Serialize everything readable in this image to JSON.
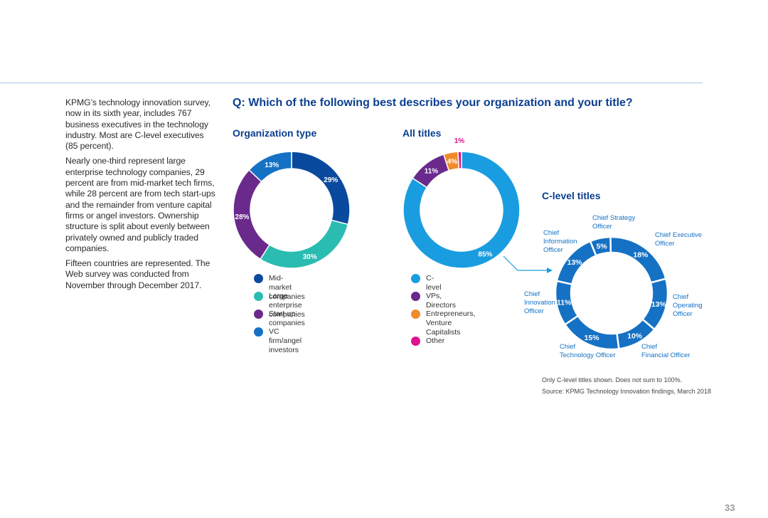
{
  "intro_paragraphs": [
    "KPMG’s technology innovation survey, now in its sixth year, includes 767 business executives in the technology industry. Most are C-level executives (85 percent).",
    "Nearly one-third represent large enterprise technology companies, 29 percent are from mid-market tech firms, while 28 percent are from tech start-ups and the remainder from venture capital firms or angel investors. Ownership structure is split about evenly between privately owned and publicly traded companies.",
    "Fifteen countries are represented. The Web survey was conducted from November through December 2017."
  ],
  "question": "Q: Which of the following best describes your organization and your title?",
  "footnotes": {
    "note": "Only C-level titles shown. Does not sum to 100%.",
    "source": "Source: KPMG Technology Innovation findings, March 2018"
  },
  "page_number": "33",
  "chart_data": [
    {
      "type": "pie",
      "variant": "donut",
      "title": "Organization type",
      "categories": [
        "Mid-market companies",
        "Large enterprise companies",
        "Start-up companies",
        "VC firm/angel investors"
      ],
      "values": [
        29,
        30,
        28,
        13
      ],
      "labels": [
        "29%",
        "30%",
        "28%",
        "13%"
      ],
      "colors": [
        "#0a4a9e",
        "#2bbcb1",
        "#6a2a8c",
        "#1571c4"
      ],
      "legend": "below"
    },
    {
      "type": "pie",
      "variant": "donut",
      "title": "All titles",
      "categories": [
        "C-level",
        "VPs, Directors",
        "Entrepreneurs,\nVenture Capitalists",
        "Other"
      ],
      "values": [
        85,
        11,
        4,
        1
      ],
      "labels": [
        "85%",
        "11%",
        "4%",
        "1%"
      ],
      "colors": [
        "#1a9de0",
        "#6a2a8c",
        "#f08a2c",
        "#e0138a"
      ],
      "legend": "below"
    },
    {
      "type": "pie",
      "variant": "donut",
      "title": "C-level titles",
      "categories": [
        "Chief Executive Officer",
        "Chief Operating Officer",
        "Chief Financial Officer",
        "Chief Technology Officer",
        "Chief Innovation Officer",
        "Chief Information Officer",
        "Chief Strategy Officer"
      ],
      "values": [
        18,
        13,
        10,
        15,
        11,
        13,
        5
      ],
      "labels": [
        "18%",
        "13%",
        "10%",
        "15%",
        "11%",
        "13%",
        "5%"
      ],
      "category_labels": [
        "Chief Executive\nOfficer",
        "Chief\nOperating\nOfficer",
        "Chief\nFinancial Officer",
        "Chief\nTechnology Officer",
        "Chief\nInnovation\nOfficer",
        "Chief\nInformation\nOfficer",
        "Chief Strategy\nOfficer"
      ],
      "colors": [
        "#1571c4"
      ],
      "legend": "none"
    }
  ]
}
